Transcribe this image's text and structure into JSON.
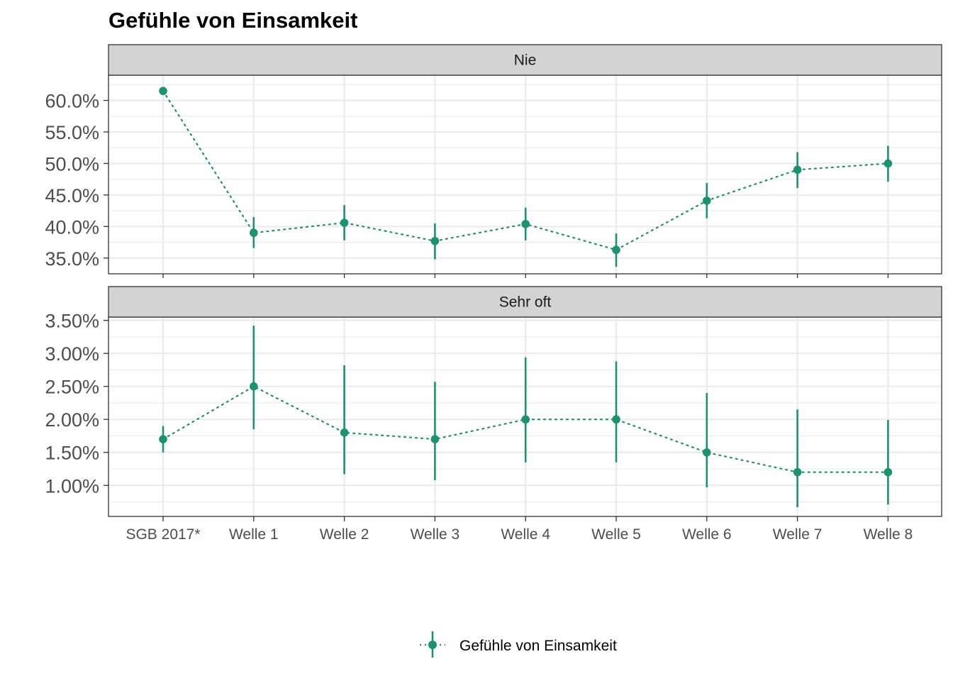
{
  "title": "Gefühle von Einsamkeit",
  "legend": {
    "label": "Gefühle von Einsamkeit",
    "placement": "bottom"
  },
  "colors": {
    "series": "#1b9270",
    "strip_background": "#d3d3d3",
    "grid": "#ebebeb",
    "axis_text": "#4d4d4d"
  },
  "chart_data": {
    "type": "line",
    "title": "Gefühle von Einsamkeit",
    "categories": [
      "SGB 2017*",
      "Welle 1",
      "Welle 2",
      "Welle 3",
      "Welle 4",
      "Welle 5",
      "Welle 6",
      "Welle 7",
      "Welle 8"
    ],
    "line_style": "dotted",
    "error_bars": true,
    "grid": true,
    "legend_position": "bottom",
    "panels": [
      {
        "strip": "Nie",
        "ylim": [
          32.5,
          64.0
        ],
        "yticks": [
          35,
          40,
          45,
          50,
          55,
          60
        ],
        "ytick_labels": [
          "35.0%",
          "40.0%",
          "45.0%",
          "50.0%",
          "55.0%",
          "60.0%"
        ],
        "series": [
          {
            "name": "Gefühle von Einsamkeit",
            "values": [
              61.5,
              39.0,
              40.6,
              37.7,
              40.4,
              36.3,
              44.1,
              49.0,
              50.0
            ],
            "lower": [
              61.0,
              36.6,
              37.8,
              34.8,
              37.8,
              33.6,
              41.3,
              46.1,
              47.1
            ],
            "upper": [
              62.0,
              41.5,
              43.4,
              40.5,
              43.0,
              38.9,
              46.9,
              51.8,
              52.8
            ]
          }
        ]
      },
      {
        "strip": "Sehr oft",
        "ylim": [
          0.53,
          3.55
        ],
        "yticks": [
          1.0,
          1.5,
          2.0,
          2.5,
          3.0,
          3.5
        ],
        "ytick_labels": [
          "1.00%",
          "1.50%",
          "2.00%",
          "2.50%",
          "3.00%",
          "3.50%"
        ],
        "series": [
          {
            "name": "Gefühle von Einsamkeit",
            "values": [
              1.7,
              2.5,
              1.8,
              1.7,
              2.0,
              2.0,
              1.5,
              1.2,
              1.2
            ],
            "lower": [
              1.5,
              1.85,
              1.17,
              1.08,
              1.35,
              1.35,
              0.97,
              0.67,
              0.71
            ],
            "upper": [
              1.9,
              3.42,
              2.82,
              2.57,
              2.94,
              2.88,
              2.4,
              2.15,
              1.99
            ]
          }
        ]
      }
    ]
  }
}
